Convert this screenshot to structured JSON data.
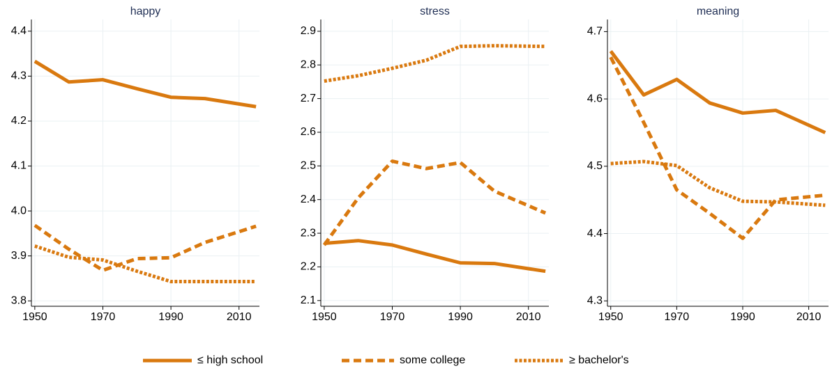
{
  "chart_data": [
    {
      "type": "line",
      "title": "happy",
      "x": [
        1950,
        1960,
        1970,
        1980,
        1990,
        2000,
        2015
      ],
      "xlim": [
        1949,
        2016
      ],
      "xticks": [
        1950,
        1970,
        1990,
        2010
      ],
      "ylim": [
        3.788,
        4.426
      ],
      "yticks": [
        3.8,
        3.9,
        {
          "value": 4,
          "label": "4.0"
        },
        4.1,
        4.2,
        4.3,
        4.4
      ],
      "grid": true,
      "legend": "bottom",
      "series": [
        {
          "name": "≤ high school",
          "color": "#d9790f",
          "dash": "solid",
          "values": [
            4.333,
            4.287,
            4.292,
            4.272,
            4.253,
            4.25,
            4.232
          ]
        },
        {
          "name": "some college",
          "color": "#d9790f",
          "dash": "dashed",
          "values": [
            3.968,
            3.915,
            3.868,
            3.894,
            3.896,
            3.93,
            3.966
          ]
        },
        {
          "name": "≥ bachelor's",
          "color": "#d9790f",
          "dash": "dotted",
          "values": [
            3.922,
            3.897,
            3.891,
            3.866,
            3.843,
            3.843,
            3.843
          ]
        }
      ]
    },
    {
      "type": "line",
      "title": "stress",
      "x": [
        1950,
        1960,
        1970,
        1980,
        1990,
        2000,
        2015
      ],
      "xlim": [
        1949,
        2016
      ],
      "xticks": [
        1950,
        1970,
        1990,
        2010
      ],
      "ylim": [
        2.083,
        2.935
      ],
      "yticks": [
        2.1,
        2.2,
        2.3,
        2.4,
        2.5,
        2.6,
        2.7,
        2.8,
        2.9
      ],
      "grid": true,
      "series": [
        {
          "color": "#d9790f",
          "dash": "solid",
          "values": [
            2.27,
            2.278,
            2.265,
            2.238,
            2.212,
            2.21,
            2.187
          ]
        },
        {
          "color": "#d9790f",
          "dash": "dashed",
          "values": [
            2.265,
            2.405,
            2.514,
            2.492,
            2.51,
            2.425,
            2.36
          ]
        },
        {
          "color": "#d9790f",
          "dash": "dotted",
          "values": [
            2.752,
            2.768,
            2.79,
            2.814,
            2.855,
            2.857,
            2.855
          ]
        }
      ]
    },
    {
      "type": "line",
      "title": "meaning",
      "x": [
        1950,
        1960,
        1970,
        1980,
        1990,
        2000,
        2015
      ],
      "xlim": [
        1949,
        2016
      ],
      "xticks": [
        1950,
        1970,
        1990,
        2010
      ],
      "ylim": [
        4.292,
        4.718
      ],
      "yticks": [
        4.3,
        4.4,
        4.5,
        4.6,
        4.7
      ],
      "grid": true,
      "series": [
        {
          "color": "#d9790f",
          "dash": "solid",
          "values": [
            4.671,
            4.606,
            4.629,
            4.594,
            4.579,
            4.583,
            4.55
          ]
        },
        {
          "color": "#d9790f",
          "dash": "dashed",
          "values": [
            4.662,
            4.565,
            4.465,
            4.43,
            4.393,
            4.45,
            4.457
          ]
        },
        {
          "color": "#d9790f",
          "dash": "dotted",
          "values": [
            4.504,
            4.507,
            4.501,
            4.468,
            4.448,
            4.447,
            4.442
          ]
        }
      ]
    }
  ]
}
